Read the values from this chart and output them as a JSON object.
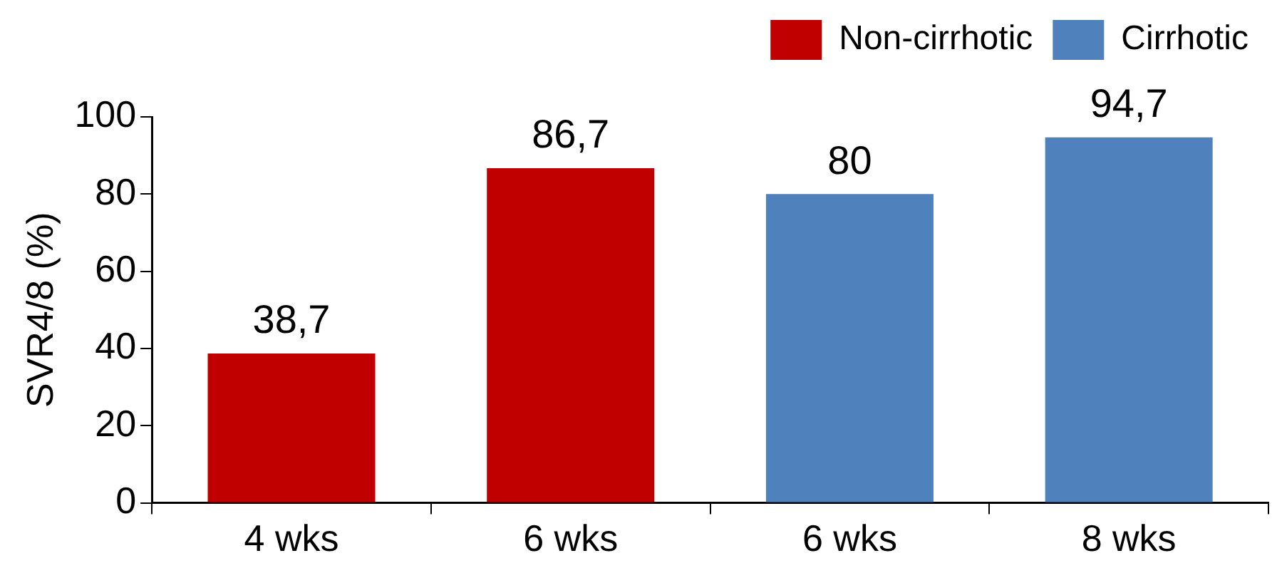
{
  "chart_data": {
    "type": "bar",
    "ylabel": "SVR4/8 (%)",
    "categories": [
      "4 wks",
      "6 wks",
      "6 wks",
      "8 wks"
    ],
    "series": [
      {
        "name": "Non-cirrhotic",
        "color": "#c00000",
        "values": [
          38.7,
          86.7,
          null,
          null
        ],
        "value_labels": [
          "38,7",
          "86,7",
          null,
          null
        ]
      },
      {
        "name": "Cirrhotic",
        "color": "#4f81bd",
        "values": [
          null,
          null,
          80,
          94.7
        ],
        "value_labels": [
          null,
          null,
          "80",
          "94,7"
        ]
      }
    ],
    "ylim": [
      0,
      100
    ],
    "yticks": [
      0,
      20,
      40,
      60,
      80,
      100
    ],
    "legend": "top right"
  }
}
